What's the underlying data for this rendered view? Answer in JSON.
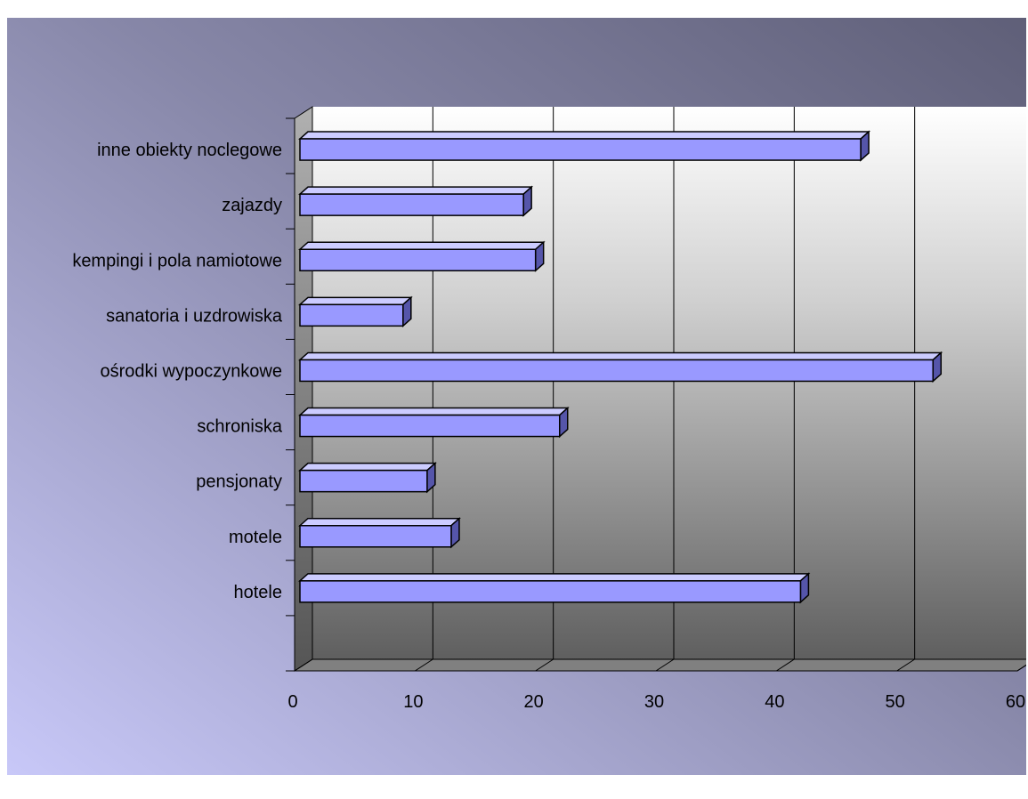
{
  "chart_data": {
    "type": "bar",
    "orientation": "horizontal",
    "style": "3d",
    "categories": [
      "inne obiekty noclegowe",
      "zajazdy",
      "kempingi i pola namiotowe",
      "sanatoria i uzdrowiska",
      "ośrodki wypoczynkowe",
      "schroniska",
      "pensjonaty",
      "motele",
      "hotele"
    ],
    "values": [
      47,
      19,
      20,
      9,
      53,
      22,
      11,
      13,
      42
    ],
    "xlim": [
      0,
      60
    ],
    "x_ticks": [
      "0",
      "10",
      "20",
      "30",
      "40",
      "50",
      "60"
    ],
    "grid": true,
    "legend": "none",
    "colors": {
      "bar_front": "#9999ff",
      "bar_top": "#ccccff",
      "bar_side": "#5555aa",
      "background_dark": "#5f5f78",
      "background_light": "#c8c8f8",
      "plot_light": "#ffffff",
      "plot_dark": "#5f5f5f"
    }
  }
}
